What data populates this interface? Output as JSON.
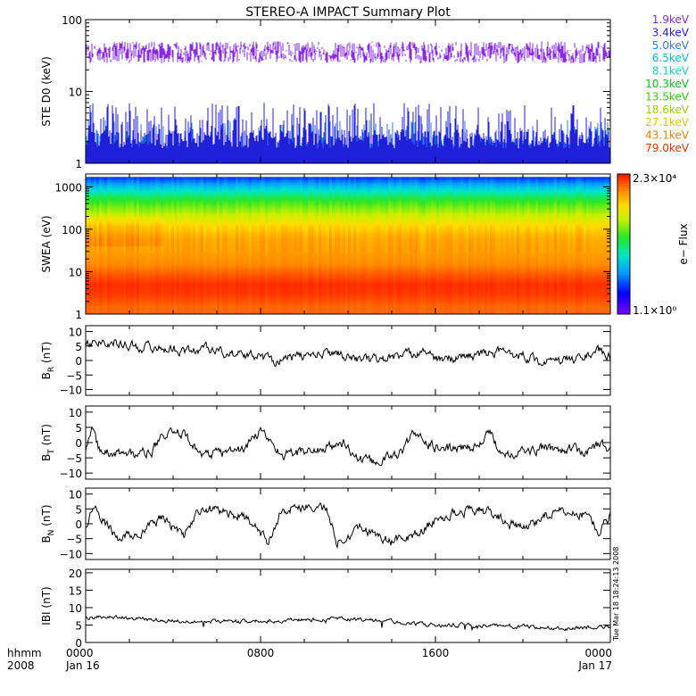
{
  "title": "STEREO-A IMPACT Summary Plot",
  "timestamp": "Tue Mar 18 18:24:13 2008",
  "time_axis": {
    "left_caption": [
      "hhmm",
      "2008"
    ],
    "ticks": [
      {
        "hours": 0,
        "label": "0000",
        "sub": "Jan 16"
      },
      {
        "hours": 8,
        "label": "0800",
        "sub": ""
      },
      {
        "hours": 16,
        "label": "1600",
        "sub": ""
      },
      {
        "hours": 24,
        "label": "0000",
        "sub": "Jan 17"
      }
    ]
  },
  "ste_energies": [
    {
      "label": "1.9keV",
      "color": "#8a2be2"
    },
    {
      "label": "3.4keV",
      "color": "#2020d8"
    },
    {
      "label": "5.0keV",
      "color": "#2a7aff"
    },
    {
      "label": "6.5keV",
      "color": "#11b7c7"
    },
    {
      "label": "8.1keV",
      "color": "#14d6ba"
    },
    {
      "label": "10.3keV",
      "color": "#10c020"
    },
    {
      "label": "13.5keV",
      "color": "#33d000"
    },
    {
      "label": "18.6keV",
      "color": "#99d500"
    },
    {
      "label": "27.1keV",
      "color": "#e6c800"
    },
    {
      "label": "43.1keV",
      "color": "#f08000"
    },
    {
      "label": "79.0keV",
      "color": "#e63300"
    }
  ],
  "swea_colorbar": {
    "max_label": "2.3×10⁴",
    "min_label": "1.1×10⁰",
    "title": "e− Flux"
  },
  "chart_data": [
    {
      "type": "line",
      "id": "ste",
      "ylabel": "STE D0 (keV)",
      "yscale": "log",
      "ylim": [
        1,
        100
      ],
      "yticks": [
        {
          "value": 1,
          "label": "1"
        },
        {
          "value": 10,
          "label": "10"
        },
        {
          "value": 100,
          "label": "100"
        }
      ],
      "series": [
        {
          "name": "1.9keV",
          "level": 35,
          "spread": [
            18,
            62
          ]
        },
        {
          "name": "3.4keV",
          "level": 3.0,
          "spread": [
            1.6,
            7
          ]
        },
        {
          "name": "5.0keV",
          "level": 2.0,
          "spread": [
            1.2,
            4
          ]
        },
        {
          "name": "6.5keV",
          "level": 1.5,
          "spread": [
            1.0,
            2.5
          ]
        },
        {
          "name": "8.1keV",
          "level": 1.3,
          "spread": [
            1.0,
            2.0
          ]
        },
        {
          "name": "10.3keV",
          "level": 1.2,
          "spread": [
            1.0,
            1.8
          ]
        },
        {
          "name": "13.5keV",
          "level": 1.15,
          "spread": [
            1.0,
            1.8
          ]
        },
        {
          "name": "18.6keV",
          "level": 1.1,
          "spread": [
            1.0,
            1.8
          ]
        },
        {
          "name": "27.1keV",
          "level": 1.05,
          "spread": [
            1.0,
            1.8
          ]
        },
        {
          "name": "43.1keV",
          "level": 1.0,
          "spread": [
            1.0,
            1.8
          ]
        },
        {
          "name": "79.0keV",
          "level": 1.0,
          "spread": [
            1.0,
            1.8
          ]
        }
      ]
    },
    {
      "type": "heatmap",
      "id": "swea",
      "ylabel": "SWEA (eV)",
      "yscale": "log",
      "ylim": [
        1,
        2000
      ],
      "yticks": [
        {
          "value": 1,
          "label": "1"
        },
        {
          "value": 10,
          "label": "10"
        },
        {
          "value": 100,
          "label": "100"
        },
        {
          "value": 1000,
          "label": "1000"
        }
      ],
      "zscale": "log",
      "zlim": [
        1.1,
        23000
      ],
      "energy_levels_eV": [
        1.5,
        3,
        5,
        8,
        15,
        30,
        60,
        120,
        250,
        500,
        1000,
        1700
      ],
      "log_flux_profile": [
        4.0,
        4.2,
        4.25,
        4.1,
        3.85,
        3.75,
        3.7,
        3.45,
        2.9,
        2.4,
        1.6,
        0.9
      ],
      "note_variation_hours": [
        [
          0,
          3.5
        ],
        [
          3.5,
          24
        ]
      ]
    },
    {
      "type": "line",
      "id": "br",
      "ylabel_main": "B",
      "ylabel_sub": "R",
      "ylabel_unit": " (nT)",
      "ylim": [
        -12,
        12
      ],
      "yticks": [
        {
          "value": 10,
          "label": "10"
        },
        {
          "value": 5,
          "label": "5"
        },
        {
          "value": 0,
          "label": "0"
        },
        {
          "value": -5,
          "label": "−5"
        },
        {
          "value": -10,
          "label": "−10"
        }
      ],
      "x_hours": [
        0,
        0.3,
        0.8,
        1.5,
        2.2,
        3,
        4,
        5,
        5.5,
        6,
        7,
        8,
        8.7,
        9.5,
        10.5,
        11.5,
        12,
        13,
        14,
        14.8,
        15.5,
        16,
        17,
        18,
        19,
        20,
        21,
        22,
        23,
        23.5,
        24
      ],
      "values": [
        5,
        6,
        7,
        6,
        5,
        4.5,
        4,
        3,
        5,
        3,
        2,
        1.5,
        0,
        1,
        2,
        3,
        1,
        0,
        1,
        2,
        4,
        0,
        1,
        2,
        3,
        2,
        -1,
        0,
        2,
        3,
        1
      ]
    },
    {
      "type": "line",
      "id": "bt",
      "ylabel_main": "B",
      "ylabel_sub": "T",
      "ylabel_unit": " (nT)",
      "ylim": [
        -12,
        12
      ],
      "yticks": [
        {
          "value": 10,
          "label": "10"
        },
        {
          "value": 5,
          "label": "5"
        },
        {
          "value": 0,
          "label": "0"
        },
        {
          "value": -5,
          "label": "−5"
        },
        {
          "value": -10,
          "label": "−10"
        }
      ],
      "x_hours": [
        0,
        0.3,
        0.6,
        1,
        2,
        3,
        3.5,
        4.5,
        5,
        5.5,
        6.5,
        7.3,
        8,
        9,
        10,
        11,
        11.8,
        12.5,
        13.5,
        14.5,
        15,
        16,
        17,
        18,
        18.5,
        19,
        20,
        21,
        22,
        23,
        23.5,
        24
      ],
      "values": [
        -3,
        3,
        -2,
        -3,
        -4,
        -3,
        2,
        3,
        -2,
        -4,
        -3,
        -2,
        4,
        -4,
        -3,
        -2,
        0,
        -6,
        -6,
        -3,
        3,
        -2,
        -2,
        -1,
        3,
        -3,
        -3,
        -2,
        -2,
        -3,
        0,
        -3
      ]
    },
    {
      "type": "line",
      "id": "bn",
      "ylabel_main": "B",
      "ylabel_sub": "N",
      "ylabel_unit": " (nT)",
      "ylim": [
        -12,
        12
      ],
      "yticks": [
        {
          "value": 10,
          "label": "10"
        },
        {
          "value": 5,
          "label": "5"
        },
        {
          "value": 0,
          "label": "0"
        },
        {
          "value": -5,
          "label": "−5"
        },
        {
          "value": -10,
          "label": "−10"
        }
      ],
      "x_hours": [
        0,
        0.3,
        0.7,
        1.5,
        2.5,
        3.5,
        4.5,
        5,
        5.7,
        6.5,
        7.5,
        8.3,
        9,
        10,
        11,
        11.5,
        12.5,
        14,
        15,
        16,
        17,
        18,
        19,
        20,
        21,
        22,
        23,
        23.5,
        24
      ],
      "values": [
        -2,
        6,
        2,
        -5,
        -3,
        2,
        -4,
        3,
        5,
        4,
        1,
        -6,
        5,
        6,
        5,
        -6,
        -1,
        -6,
        -4,
        1,
        4,
        5,
        2,
        -2,
        3,
        4,
        3,
        -3,
        3
      ]
    },
    {
      "type": "line",
      "id": "bmag",
      "ylabel": "IBI (nT)",
      "ylim": [
        0,
        21
      ],
      "yticks": [
        {
          "value": 20,
          "label": "20"
        },
        {
          "value": 15,
          "label": "15"
        },
        {
          "value": 10,
          "label": "10"
        },
        {
          "value": 5,
          "label": "5"
        },
        {
          "value": 0,
          "label": "0"
        }
      ],
      "x_hours": [
        0,
        1,
        3,
        5,
        7,
        8,
        10,
        12,
        14,
        16,
        18,
        20,
        22,
        24
      ],
      "values": [
        7,
        7.5,
        6.5,
        6,
        6,
        6.2,
        6.5,
        6.8,
        6,
        5,
        5,
        4.5,
        4,
        4.5
      ]
    }
  ]
}
